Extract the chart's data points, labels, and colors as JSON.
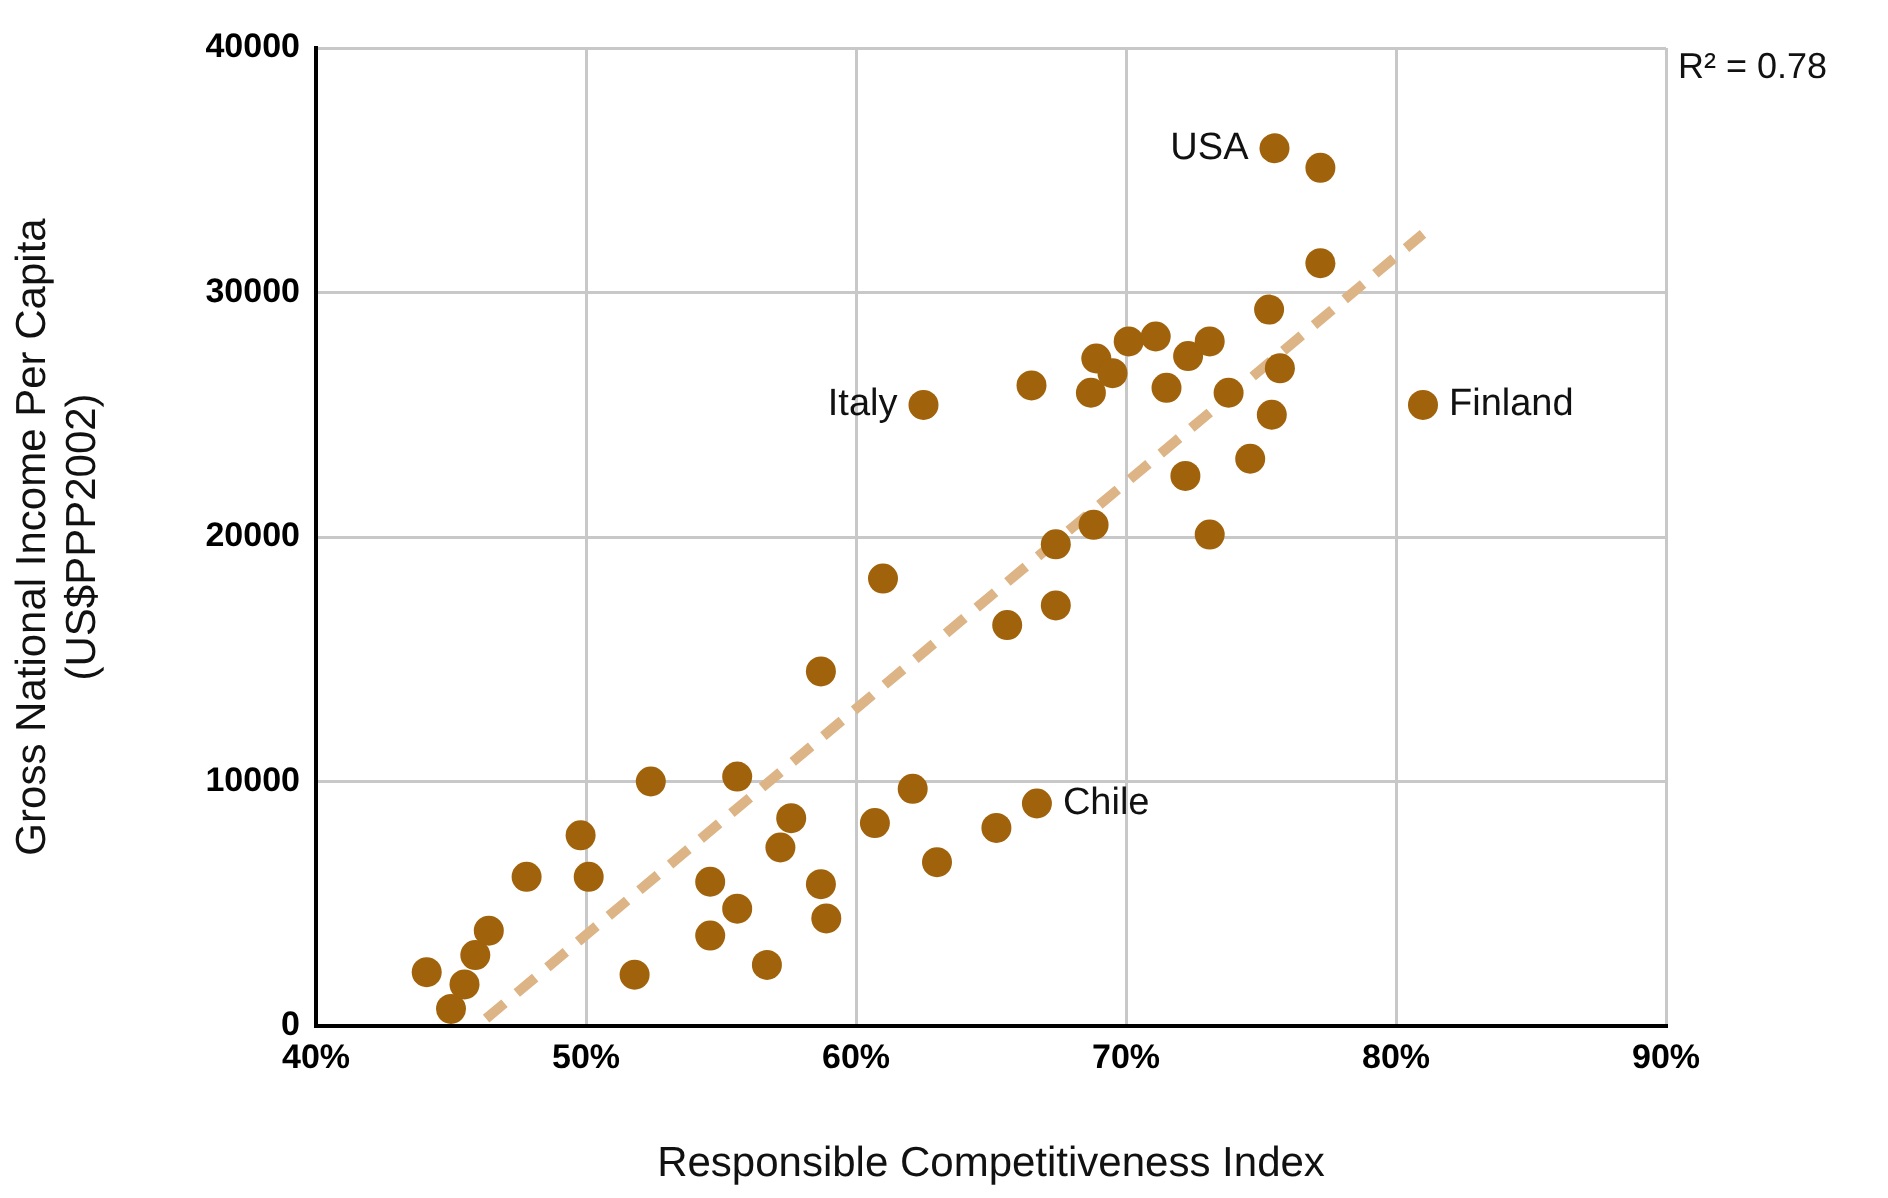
{
  "chart_data": {
    "type": "scatter",
    "xlabel": "Responsible Competitiveness Index",
    "ylabel": "Gross National Income Per Capita (US$PPP2002)",
    "xlim": [
      40,
      90
    ],
    "xticks": [
      {
        "value": 40,
        "label": "40%"
      },
      {
        "value": 50,
        "label": "50%"
      },
      {
        "value": 60,
        "label": "60%"
      },
      {
        "value": 70,
        "label": "70%"
      },
      {
        "value": 80,
        "label": "80%"
      },
      {
        "value": 90,
        "label": "90%"
      }
    ],
    "ylim": [
      0,
      40000
    ],
    "yticks": [
      0,
      10000,
      20000,
      30000,
      40000
    ],
    "grid": true,
    "legend": false,
    "marker": "circle",
    "series": [
      {
        "color": "#a0620a",
        "x": [
          44.1,
          45.0,
          45.5,
          45.9,
          46.4,
          47.8,
          49.8,
          50.1,
          51.8,
          52.4,
          54.6,
          54.6,
          55.6,
          55.6,
          56.7,
          57.6,
          57.2,
          58.7,
          58.7,
          58.9,
          61.0,
          60.7,
          62.1,
          63.0,
          65.2,
          65.6,
          67.4,
          66.7,
          62.5,
          66.5,
          67.4,
          68.8,
          75.5,
          77.2,
          77.2,
          75.3,
          68.9,
          68.7,
          69.5,
          70.1,
          71.1,
          71.5,
          72.3,
          73.1,
          73.8,
          75.7,
          75.4,
          74.6,
          72.2,
          73.1,
          81.0
        ],
        "values": [
          2200,
          700,
          1700,
          2900,
          3900,
          6100,
          7800,
          6100,
          2100,
          10000,
          5900,
          3700,
          4800,
          10200,
          2500,
          8500,
          7300,
          14500,
          5800,
          4400,
          18300,
          8300,
          9700,
          6700,
          8100,
          16400,
          17200,
          9100,
          25400,
          26200,
          19700,
          20500,
          35900,
          35100,
          31200,
          29300,
          27300,
          25900,
          26700,
          28000,
          28200,
          26100,
          27400,
          28000,
          25900,
          26900,
          25000,
          23200,
          22500,
          20100,
          25400
        ]
      },
      {
        "type": "line",
        "color": "#dcb486",
        "line_style": "dashed",
        "marker": "none",
        "x": [
          46.3,
          81.0
        ],
        "values": [
          300,
          32400
        ]
      }
    ],
    "annotations": [
      {
        "text": "Italy",
        "x": 62.5,
        "y": 25400
      },
      {
        "text": "USA",
        "x": 75.5,
        "y": 35900
      },
      {
        "text": "Chile",
        "x": 66.7,
        "y": 9100
      },
      {
        "text": "Finland",
        "x": 81.0,
        "y": 25400
      },
      "R² = 0.78"
    ]
  }
}
